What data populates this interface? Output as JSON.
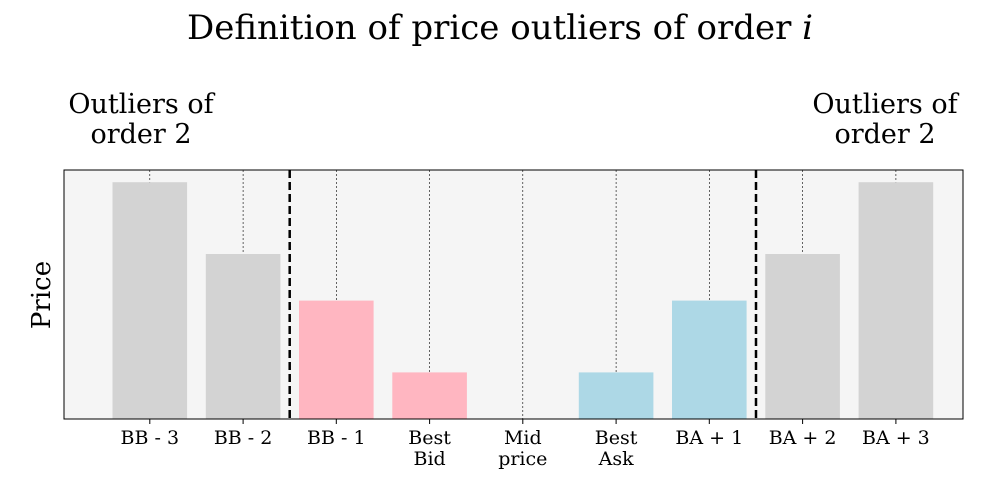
{
  "chart_data": {
    "type": "bar",
    "title_text": "Definition of price outliers of order ",
    "title_var": "i",
    "ylabel": "Price",
    "xlabel": "",
    "categories": [
      [
        "BB - 3"
      ],
      [
        "BB - 2"
      ],
      [
        "BB - 1"
      ],
      [
        "Best",
        "Bid"
      ],
      [
        "Mid",
        "price"
      ],
      [
        "Best",
        "Ask"
      ],
      [
        "BA + 1"
      ],
      [
        "BA + 2"
      ],
      [
        "BA + 3"
      ]
    ],
    "values": [
      3.3,
      2.3,
      1.65,
      0.65,
      0,
      0.65,
      1.65,
      2.3,
      3.3
    ],
    "bar_colors": [
      "#d3d3d3",
      "#d3d3d3",
      "#ffb6c1",
      "#ffb6c1",
      "#ffffff",
      "#add8e6",
      "#add8e6",
      "#d3d3d3",
      "#d3d3d3"
    ],
    "ylim": [
      0,
      3.47
    ],
    "xlim": [
      -0.92,
      8.72
    ],
    "grid": "vertical dotted at each category",
    "background": "#f5f5f5",
    "threshold_lines": [
      1.5,
      6.5
    ],
    "annotations": [
      {
        "lines": [
          "Outliers of",
          "order 2"
        ],
        "side": "left"
      },
      {
        "lines": [
          "Outliers of",
          "order 2"
        ],
        "side": "right"
      }
    ]
  }
}
